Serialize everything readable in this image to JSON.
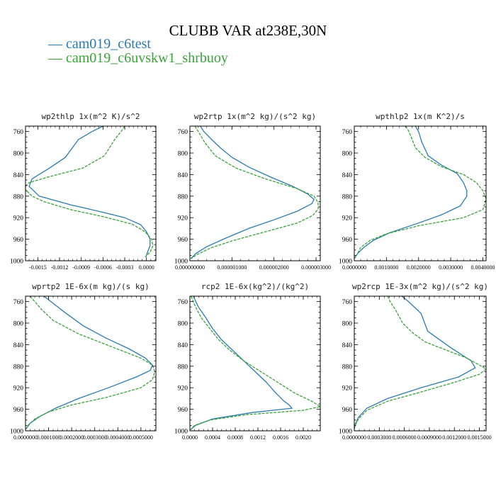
{
  "title": "CLUBB VAR at238E,30N",
  "legend": [
    {
      "name": "cam019_c6test",
      "color": "#2b7bb2"
    },
    {
      "name": "cam019_c6uvskw1_shrbuoy",
      "color": "#3aa33a"
    }
  ],
  "chart_data": [
    {
      "type": "line",
      "title": "wp2thlp   1x(m^2 K)/s^2",
      "ylim": [
        1000,
        750
      ],
      "xlim": [
        -0.00167,
        0.00013
      ],
      "yticks": [
        "760",
        "800",
        "840",
        "880",
        "920",
        "960",
        "1000"
      ],
      "xticks": [
        "-0.0015",
        "-0.0012",
        "-0.0009",
        "-0.0006",
        "-0.0003",
        "0.0000"
      ],
      "xtick_values": [
        -0.0015,
        -0.0012,
        -0.0009,
        -0.0006,
        -0.0003,
        0.0
      ],
      "series": [
        {
          "name": "cam019_c6test",
          "color": "#2b7bb2",
          "dashed": false,
          "y": [
            750,
            760,
            775,
            808,
            828,
            848,
            862,
            880,
            896,
            910,
            920,
            933,
            946,
            960,
            972,
            986,
            993
          ],
          "x": [
            -0.0006,
            -0.00075,
            -0.00094,
            -0.00112,
            -0.00134,
            -0.00158,
            -0.00162,
            -0.00148,
            -0.00105,
            -0.0006,
            -0.0003,
            -8e-05,
            0.0,
            5e-05,
            5e-05,
            1e-05,
            -1e-05
          ]
        },
        {
          "name": "cam019_c6uvskw1_shrbuoy",
          "color": "#3aa33a",
          "dashed": true,
          "y": [
            750,
            760,
            775,
            805,
            828,
            843,
            855,
            862,
            868,
            880,
            890,
            905,
            918,
            932,
            946,
            960,
            972,
            984,
            993
          ],
          "x": [
            -0.0003,
            -0.00035,
            -0.00044,
            -0.00058,
            -0.00088,
            -0.00132,
            -0.00162,
            -0.00167,
            -0.00167,
            -0.00158,
            -0.00142,
            -0.00105,
            -0.0006,
            -0.0002,
            -2e-05,
            7e-05,
            9e-05,
            5e-05,
            -2e-05
          ]
        }
      ]
    },
    {
      "type": "line",
      "title": "wp2rtp   1x(m^2 kg)/(s^2 kg)",
      "ylim": [
        1000,
        750
      ],
      "xlim": [
        0.0,
        3.1e-06
      ],
      "yticks": [
        "760",
        "800",
        "840",
        "880",
        "920",
        "960",
        "1000"
      ],
      "xticks": [
        "0.000000000",
        "0.000001000",
        "0.000002000",
        "0.000003000"
      ],
      "xtick_values": [
        0.0,
        1e-06,
        2e-06,
        3e-06
      ],
      "series": [
        {
          "name": "cam019_c6test",
          "color": "#2b7bb2",
          "dashed": false,
          "y": [
            750,
            760,
            775,
            790,
            808,
            826,
            844,
            862,
            876,
            886,
            894,
            908,
            924,
            940,
            958,
            974,
            986,
            996
          ],
          "x": [
            2.5e-07,
            3.3e-07,
            5.2e-07,
            7.2e-07,
            1e-06,
            1.4e-06,
            1.9e-06,
            2.45e-06,
            2.8e-06,
            2.95e-06,
            2.9e-06,
            2.55e-06,
            2e-06,
            1.4e-06,
            8.5e-07,
            4e-07,
            1.5e-07,
            2e-08
          ]
        },
        {
          "name": "cam019_c6uvskw1_shrbuoy",
          "color": "#3aa33a",
          "dashed": true,
          "y": [
            750,
            760,
            780,
            805,
            828,
            848,
            866,
            880,
            892,
            904,
            916,
            930,
            946,
            962,
            976,
            988,
            996
          ],
          "x": [
            1.2e-07,
            2e-07,
            3.5e-07,
            6e-07,
            1.1e-06,
            1.8e-06,
            2.55e-06,
            2.95e-06,
            3.05e-06,
            3.05e-06,
            2.92e-06,
            2.55e-06,
            1.8e-06,
            1.05e-06,
            5e-07,
            1.8e-07,
            3e-08
          ]
        }
      ]
    },
    {
      "type": "line",
      "title": "wpthlp2   1x(m K^2)/s",
      "ylim": [
        1000,
        750
      ],
      "xlim": [
        0.0,
        0.0041
      ],
      "yticks": [
        "760",
        "800",
        "840",
        "880",
        "920",
        "960",
        "1000"
      ],
      "xticks": [
        "0.0000000",
        "0.0010000",
        "0.0020000",
        "0.0030000",
        "0.0040000"
      ],
      "xtick_values": [
        0.0,
        0.001,
        0.002,
        0.003,
        0.004
      ],
      "series": [
        {
          "name": "cam019_c6test",
          "color": "#2b7bb2",
          "dashed": false,
          "y": [
            750,
            760,
            780,
            805,
            822,
            838,
            855,
            870,
            880,
            898,
            915,
            932,
            948,
            962,
            975,
            987,
            996
          ],
          "x": [
            0.0019,
            0.002,
            0.0021,
            0.0023,
            0.0027,
            0.0032,
            0.0034,
            0.0035,
            0.0035,
            0.0033,
            0.0027,
            0.0019,
            0.0011,
            0.0006,
            0.0003,
            0.0001,
            0.0
          ]
        },
        {
          "name": "cam019_c6uvskw1_shrbuoy",
          "color": "#3aa33a",
          "dashed": true,
          "y": [
            750,
            760,
            775,
            790,
            808,
            825,
            840,
            855,
            870,
            885,
            905,
            920,
            935,
            950,
            962,
            975,
            987,
            996
          ],
          "x": [
            0.0016,
            0.0017,
            0.0018,
            0.0019,
            0.0022,
            0.0027,
            0.0034,
            0.0038,
            0.004,
            0.0041,
            0.004,
            0.0034,
            0.002,
            0.001,
            0.0005,
            0.0002,
            0.0001,
            0.0
          ]
        }
      ]
    },
    {
      "type": "line",
      "title": "wprtp2   1E-6x(m kg)/(s kg)",
      "ylim": [
        1000,
        750
      ],
      "xlim": [
        0.0,
        0.000565
      ],
      "yticks": [
        "760",
        "800",
        "840",
        "880",
        "920",
        "960",
        "1000"
      ],
      "xticks": [
        "0.0000000",
        "0.0001000",
        "0.0002000",
        "0.0003000",
        "0.0004000",
        "0.0005000"
      ],
      "xtick_values": [
        0.0,
        0.0001,
        0.0002,
        0.0003,
        0.0004,
        0.0005
      ],
      "series": [
        {
          "name": "cam019_c6test",
          "color": "#2b7bb2",
          "dashed": false,
          "y": [
            750,
            760,
            780,
            805,
            828,
            848,
            865,
            878,
            888,
            900,
            920,
            940,
            958,
            974,
            986,
            996
          ],
          "x": [
            8e-05,
            0.00011,
            0.00017,
            0.00025,
            0.00035,
            0.00045,
            0.00052,
            0.00055,
            0.00054,
            0.00048,
            0.00036,
            0.00023,
            0.00013,
            6e-05,
            2e-05,
            3e-06
          ]
        },
        {
          "name": "cam019_c6uvskw1_shrbuoy",
          "color": "#3aa33a",
          "dashed": true,
          "y": [
            750,
            760,
            775,
            795,
            820,
            845,
            865,
            878,
            890,
            905,
            920,
            938,
            952,
            965,
            978,
            990,
            997
          ],
          "x": [
            2e-05,
            4e-05,
            7e-05,
            0.00012,
            0.00023,
            0.00038,
            0.0005,
            0.00055,
            0.00056,
            0.00055,
            0.0005,
            0.00035,
            0.0002,
            0.0001,
            4e-05,
            1e-05,
            2e-06
          ]
        }
      ]
    },
    {
      "type": "line",
      "title": "rcp2   1E-6x(kg^2)/(kg^2)",
      "ylim": [
        1000,
        750
      ],
      "xlim": [
        0.0,
        0.0023
      ],
      "yticks": [
        "760",
        "800",
        "840",
        "880",
        "920",
        "960",
        "1000"
      ],
      "xticks": [
        "0.0000",
        "0.0004",
        "0.0008",
        "0.0012",
        "0.0016",
        "0.0020"
      ],
      "xtick_values": [
        0.0,
        0.0004,
        0.0008,
        0.0012,
        0.0016,
        0.002
      ],
      "series": [
        {
          "name": "cam019_c6test",
          "color": "#2b7bb2",
          "dashed": false,
          "y": [
            750,
            770,
            790,
            810,
            830,
            850,
            870,
            890,
            910,
            928,
            944,
            952,
            958,
            966,
            978,
            990,
            998
          ],
          "x": [
            6e-05,
            0.00015,
            0.00028,
            0.0004,
            0.00055,
            0.00075,
            0.00095,
            0.00115,
            0.00135,
            0.0015,
            0.00165,
            0.00175,
            0.0018,
            0.0011,
            0.0004,
            0.0001,
            1e-05
          ]
        },
        {
          "name": "cam019_c6uvskw1_shrbuoy",
          "color": "#3aa33a",
          "dashed": true,
          "y": [
            750,
            770,
            790,
            810,
            830,
            850,
            870,
            890,
            910,
            930,
            945,
            955,
            962,
            970,
            980,
            990,
            998
          ],
          "x": [
            2e-05,
            0.0001,
            0.0002,
            0.00035,
            0.0005,
            0.0007,
            0.00095,
            0.00125,
            0.00155,
            0.00185,
            0.00215,
            0.0023,
            0.002,
            0.001,
            0.00035,
            8e-05,
            1e-05
          ]
        }
      ]
    },
    {
      "type": "line",
      "title": "wp2rcp   1E-3x(m^2 kg)/(s^2 kg)",
      "ylim": [
        1000,
        750
      ],
      "xlim": [
        0.0,
        0.00158
      ],
      "yticks": [
        "760",
        "800",
        "840",
        "880",
        "920",
        "960",
        "1000"
      ],
      "xticks": [
        "0.0000000",
        "0.0003000",
        "0.0006000",
        "0.0009000",
        "0.0012000",
        "0.0015000"
      ],
      "xtick_values": [
        0.0,
        0.0003,
        0.0006,
        0.0009,
        0.0012,
        0.0015
      ],
      "series": [
        {
          "name": "cam019_c6test",
          "color": "#2b7bb2",
          "dashed": false,
          "y": [
            750,
            760,
            782,
            815,
            845,
            870,
            883,
            900,
            920,
            940,
            958,
            975,
            988,
            996
          ],
          "x": [
            0.00057,
            0.00065,
            0.0008,
            0.00088,
            0.00115,
            0.0014,
            0.00145,
            0.00125,
            0.0008,
            0.0004,
            0.00015,
            5e-05,
            1e-05,
            0.0
          ]
        },
        {
          "name": "cam019_c6uvskw1_shrbuoy",
          "color": "#3aa33a",
          "dashed": true,
          "y": [
            750,
            760,
            777,
            800,
            818,
            835,
            850,
            865,
            878,
            885,
            895,
            910,
            928,
            945,
            962,
            978,
            990,
            997
          ],
          "x": [
            0.0004,
            0.00043,
            0.0005,
            0.00058,
            0.0007,
            0.00085,
            0.0011,
            0.00135,
            0.0015,
            0.00158,
            0.0015,
            0.0012,
            0.0008,
            0.0004,
            0.00015,
            5e-05,
            1e-05,
            0.0
          ]
        }
      ]
    }
  ]
}
